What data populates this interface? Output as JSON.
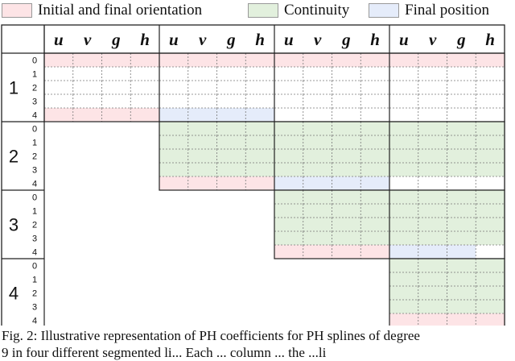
{
  "legend": [
    {
      "label": "Initial and final orientation",
      "color": "#fde4e6"
    },
    {
      "label": "Continuity",
      "color": "#e2f0dd"
    },
    {
      "label": "Final position",
      "color": "#e5ecfa"
    }
  ],
  "colors": {
    "orientation": "#fde4e6",
    "continuity": "#e2f0dd",
    "position": "#e5ecfa",
    "empty": "#ffffff"
  },
  "column_headers": [
    "u",
    "v",
    "g",
    "h"
  ],
  "row_index_labels": [
    "0",
    "1",
    "2",
    "3",
    "4"
  ],
  "blocks": [
    {
      "label": "1",
      "rows": [
        [
          "orientation",
          "orientation",
          "orientation",
          "orientation"
        ],
        [
          "empty",
          "empty",
          "empty",
          "empty"
        ],
        [
          "empty",
          "empty",
          "empty",
          "empty"
        ],
        [
          "empty",
          "empty",
          "empty",
          "empty"
        ],
        [
          "orientation",
          "position",
          "empty",
          "empty"
        ]
      ]
    },
    {
      "label": "2",
      "rows": [
        [
          "none",
          "continuity",
          "continuity",
          "continuity"
        ],
        [
          "none",
          "continuity",
          "continuity",
          "continuity"
        ],
        [
          "none",
          "continuity",
          "continuity",
          "continuity"
        ],
        [
          "none",
          "continuity",
          "continuity",
          "continuity"
        ],
        [
          "none",
          "orientation",
          "position",
          "empty"
        ]
      ]
    },
    {
      "label": "3",
      "rows": [
        [
          "none",
          "none",
          "continuity",
          "continuity"
        ],
        [
          "none",
          "none",
          "continuity",
          "continuity"
        ],
        [
          "none",
          "none",
          "continuity",
          "continuity"
        ],
        [
          "none",
          "none",
          "continuity",
          "continuity"
        ],
        [
          "none",
          "none",
          "orientation",
          "position_partial"
        ]
      ]
    },
    {
      "label": "4",
      "rows": [
        [
          "none",
          "none",
          "none",
          "continuity"
        ],
        [
          "none",
          "none",
          "none",
          "continuity"
        ],
        [
          "none",
          "none",
          "none",
          "continuity"
        ],
        [
          "none",
          "none",
          "none",
          "continuity"
        ],
        [
          "none",
          "none",
          "none",
          "orientation"
        ]
      ]
    }
  ],
  "caption": {
    "line1": "Fig. 2: Illustrative representation of PH coefficients for PH splines of degree",
    "line2": "9 in four different segmented li... Each ... column ... the ...li"
  }
}
